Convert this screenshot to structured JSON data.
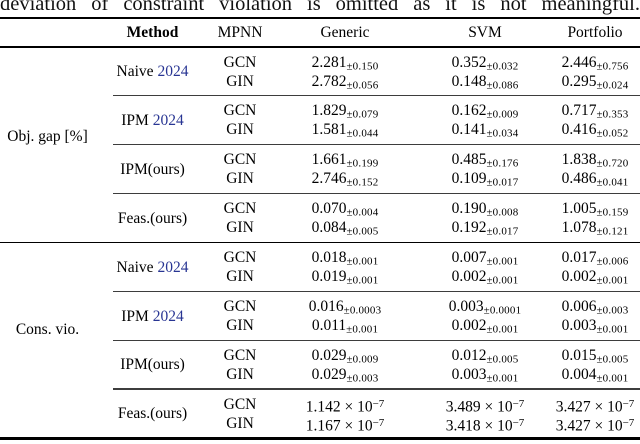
{
  "caption_text": "deviation of constraint violation is omitted as it is not meaningful.",
  "table": {
    "citation_color": "#283593",
    "headers": [
      "Method",
      "MPNN",
      "Generic",
      "SVM",
      "Portfolio"
    ],
    "sections": [
      {
        "label": "Obj. gap [%]",
        "groups": [
          {
            "method": "Naive",
            "cite": "2024",
            "rows": [
              {
                "mpnn": "GCN",
                "values": [
                  {
                    "v": "2.281",
                    "pm": "±0.150"
                  },
                  {
                    "v": "0.352",
                    "pm": "±0.032"
                  },
                  {
                    "v": "2.446",
                    "pm": "±0.756"
                  }
                ]
              },
              {
                "mpnn": "GIN",
                "values": [
                  {
                    "v": "2.782",
                    "pm": "±0.056"
                  },
                  {
                    "v": "0.148",
                    "pm": "±0.086"
                  },
                  {
                    "v": "0.295",
                    "pm": "±0.024"
                  }
                ]
              }
            ]
          },
          {
            "method": "IPM",
            "cite": "2024",
            "rows": [
              {
                "mpnn": "GCN",
                "values": [
                  {
                    "v": "1.829",
                    "pm": "±0.079"
                  },
                  {
                    "v": "0.162",
                    "pm": "±0.009"
                  },
                  {
                    "v": "0.717",
                    "pm": "±0.353"
                  }
                ]
              },
              {
                "mpnn": "GIN",
                "values": [
                  {
                    "v": "1.581",
                    "pm": "±0.044"
                  },
                  {
                    "v": "0.141",
                    "pm": "±0.034"
                  },
                  {
                    "v": "0.416",
                    "pm": "±0.052"
                  }
                ]
              }
            ]
          },
          {
            "method": "IPM(ours)",
            "cite": null,
            "rows": [
              {
                "mpnn": "GCN",
                "values": [
                  {
                    "v": "1.661",
                    "pm": "±0.199"
                  },
                  {
                    "v": "0.485",
                    "pm": "±0.176"
                  },
                  {
                    "v": "1.838",
                    "pm": "±0.720"
                  }
                ]
              },
              {
                "mpnn": "GIN",
                "values": [
                  {
                    "v": "2.746",
                    "pm": "±0.152"
                  },
                  {
                    "v": "0.109",
                    "pm": "±0.017"
                  },
                  {
                    "v": "0.486",
                    "pm": "±0.041"
                  }
                ]
              }
            ]
          },
          {
            "method": "Feas.(ours)",
            "cite": null,
            "rows": [
              {
                "mpnn": "GCN",
                "values": [
                  {
                    "v": "0.070",
                    "pm": "±0.004"
                  },
                  {
                    "v": "0.190",
                    "pm": "±0.008"
                  },
                  {
                    "v": "1.005",
                    "pm": "±0.159"
                  }
                ]
              },
              {
                "mpnn": "GIN",
                "values": [
                  {
                    "v": "0.084",
                    "pm": "±0.005"
                  },
                  {
                    "v": "0.192",
                    "pm": "±0.017"
                  },
                  {
                    "v": "1.078",
                    "pm": "±0.121"
                  }
                ]
              }
            ]
          }
        ]
      },
      {
        "label": "Cons. vio.",
        "groups": [
          {
            "method": "Naive",
            "cite": "2024",
            "rows": [
              {
                "mpnn": "GCN",
                "values": [
                  {
                    "v": "0.018",
                    "pm": "±0.001"
                  },
                  {
                    "v": "0.007",
                    "pm": "±0.001"
                  },
                  {
                    "v": "0.017",
                    "pm": "±0.006"
                  }
                ]
              },
              {
                "mpnn": "GIN",
                "values": [
                  {
                    "v": "0.019",
                    "pm": "±0.001"
                  },
                  {
                    "v": "0.002",
                    "pm": "±0.001"
                  },
                  {
                    "v": "0.002",
                    "pm": "±0.001"
                  }
                ]
              }
            ]
          },
          {
            "method": "IPM",
            "cite": "2024",
            "rows": [
              {
                "mpnn": "GCN",
                "values": [
                  {
                    "v": "0.016",
                    "pm": "±0.0003"
                  },
                  {
                    "v": "0.003",
                    "pm": "±0.0001"
                  },
                  {
                    "v": "0.006",
                    "pm": "±0.003"
                  }
                ]
              },
              {
                "mpnn": "GIN",
                "values": [
                  {
                    "v": "0.011",
                    "pm": "±0.001"
                  },
                  {
                    "v": "0.002",
                    "pm": "±0.001"
                  },
                  {
                    "v": "0.003",
                    "pm": "±0.001"
                  }
                ]
              }
            ]
          },
          {
            "method": "IPM(ours)",
            "cite": null,
            "rows": [
              {
                "mpnn": "GCN",
                "values": [
                  {
                    "v": "0.029",
                    "pm": "±0.009"
                  },
                  {
                    "v": "0.012",
                    "pm": "±0.005"
                  },
                  {
                    "v": "0.015",
                    "pm": "±0.005"
                  }
                ]
              },
              {
                "mpnn": "GIN",
                "values": [
                  {
                    "v": "0.029",
                    "pm": "±0.003"
                  },
                  {
                    "v": "0.003",
                    "pm": "±0.001"
                  },
                  {
                    "v": "0.004",
                    "pm": "±0.001"
                  }
                ]
              }
            ]
          },
          {
            "method": "Feas.(ours)",
            "cite": null,
            "rows": [
              {
                "mpnn": "GCN",
                "values": [
                  {
                    "v": "1.142 × 10",
                    "sup": "−7"
                  },
                  {
                    "v": "3.489 × 10",
                    "sup": "−7"
                  },
                  {
                    "v": "3.427 × 10",
                    "sup": "−7"
                  }
                ]
              },
              {
                "mpnn": "GIN",
                "values": [
                  {
                    "v": "1.167 × 10",
                    "sup": "−7"
                  },
                  {
                    "v": "3.418 × 10",
                    "sup": "−7"
                  },
                  {
                    "v": "3.427 × 10",
                    "sup": "−7"
                  }
                ]
              }
            ]
          }
        ]
      }
    ]
  }
}
